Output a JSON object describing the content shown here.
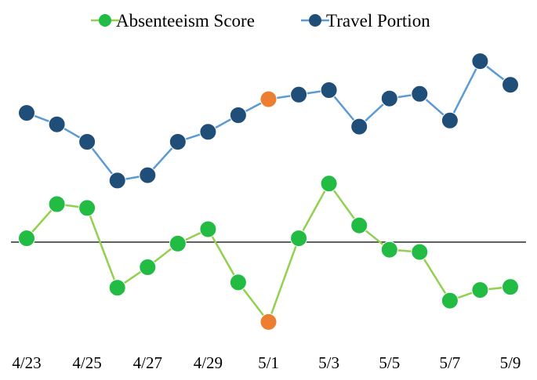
{
  "chart_data": {
    "type": "line",
    "title": "",
    "xlabel": "",
    "ylabel": "",
    "grid": false,
    "legend_position": "top-center",
    "x": [
      "4/23",
      "4/24",
      "4/25",
      "4/26",
      "4/27",
      "4/28",
      "4/29",
      "4/30",
      "5/1",
      "5/2",
      "5/3",
      "5/4",
      "5/5",
      "5/6",
      "5/7",
      "5/8",
      "5/9"
    ],
    "x_tick_labels": [
      "4/23",
      "4/25",
      "4/27",
      "4/29",
      "5/1",
      "5/3",
      "5/5",
      "5/7",
      "5/9"
    ],
    "y_axis_visible": false,
    "baseline": 0,
    "ylim": [
      -1.4,
      2.9
    ],
    "series": [
      {
        "name": "Absenteeism Score",
        "color": "#22bb44",
        "line_color": "#92d050",
        "values": [
          0.05,
          0.5,
          0.45,
          -0.6,
          -0.33,
          -0.02,
          0.17,
          -0.53,
          -1.05,
          0.05,
          0.77,
          0.22,
          -0.1,
          -0.13,
          -0.77,
          -0.63,
          -0.59
        ]
      },
      {
        "name": "Travel Portion",
        "color": "#1f4e79",
        "line_color": "#5b9bd5",
        "values": [
          1.7,
          1.55,
          1.32,
          0.81,
          0.88,
          1.32,
          1.45,
          1.67,
          1.88,
          1.94,
          2.0,
          1.52,
          1.89,
          1.95,
          1.6,
          2.38,
          2.07
        ]
      }
    ],
    "highlight": {
      "index": 8,
      "color": "#ed7d31"
    }
  }
}
